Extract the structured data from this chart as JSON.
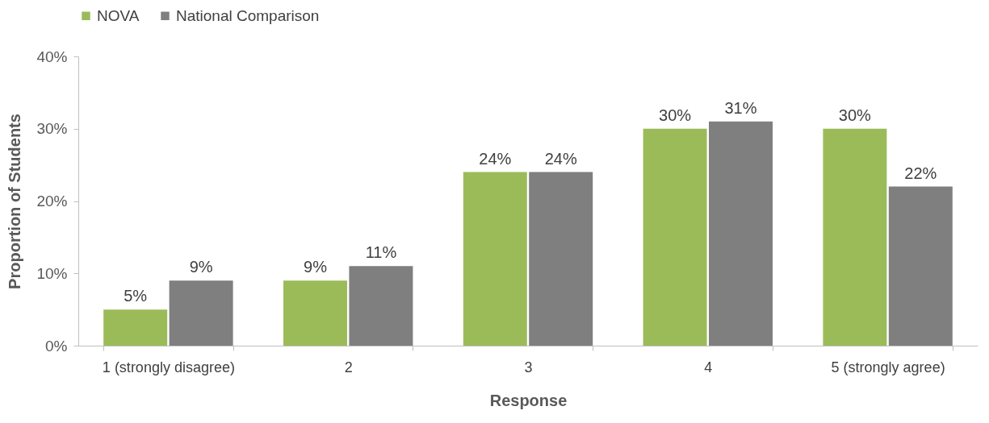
{
  "chart_data": {
    "type": "bar",
    "xlabel": "Response",
    "ylabel": "Proportion of Students",
    "categories": [
      "1 (strongly disagree)",
      "2",
      "3",
      "4",
      "5 (strongly agree)"
    ],
    "series": [
      {
        "name": "NOVA",
        "color": "#9bbb59",
        "values": [
          5,
          9,
          24,
          30,
          30
        ],
        "value_labels": [
          "5%",
          "9%",
          "24%",
          "30%",
          "30%"
        ]
      },
      {
        "name": "National Comparison",
        "color": "#7f7f7f",
        "values": [
          9,
          11,
          24,
          31,
          22
        ],
        "value_labels": [
          "9%",
          "11%",
          "24%",
          "31%",
          "22%"
        ]
      }
    ],
    "ylim": [
      0,
      40
    ],
    "yticks": [
      {
        "value": 0,
        "label": "0%"
      },
      {
        "value": 10,
        "label": "10%"
      },
      {
        "value": 20,
        "label": "20%"
      },
      {
        "value": 30,
        "label": "30%"
      },
      {
        "value": 40,
        "label": "40%"
      }
    ],
    "grid": false,
    "legend": "top"
  }
}
